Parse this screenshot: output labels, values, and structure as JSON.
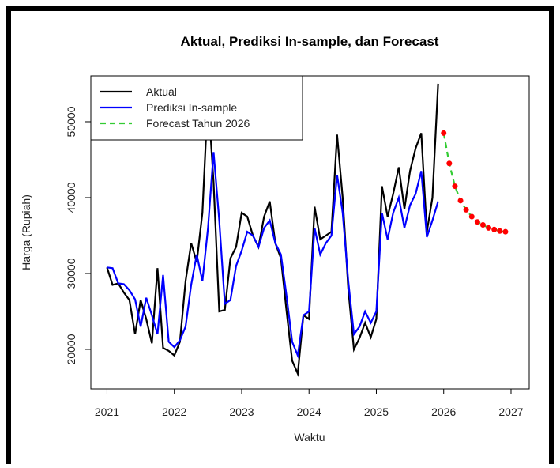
{
  "chart_data": {
    "type": "line",
    "title": "Aktual, Prediksi In-sample, dan Forecast",
    "x_label": "Waktu",
    "y_label": "Harga (Rupiah)",
    "xlim": [
      2020.76,
      2027.27
    ],
    "ylim": [
      14790,
      56040
    ],
    "xticks": [
      2021,
      2022,
      2023,
      2024,
      2025,
      2026,
      2027
    ],
    "yticks": [
      20000,
      30000,
      40000,
      50000
    ],
    "legend": "top-left",
    "series": [
      {
        "name": "Aktual",
        "color": "#000000",
        "dash": false,
        "x": [
          2021.0,
          2021.083,
          2021.167,
          2021.25,
          2021.333,
          2021.417,
          2021.5,
          2021.583,
          2021.667,
          2021.75,
          2021.833,
          2021.917,
          2022.0,
          2022.083,
          2022.167,
          2022.25,
          2022.333,
          2022.417,
          2022.5,
          2022.583,
          2022.667,
          2022.75,
          2022.833,
          2022.917,
          2023.0,
          2023.083,
          2023.167,
          2023.25,
          2023.333,
          2023.417,
          2023.5,
          2023.583,
          2023.667,
          2023.75,
          2023.833,
          2023.917,
          2024.0,
          2024.083,
          2024.167,
          2024.25,
          2024.333,
          2024.417,
          2024.5,
          2024.583,
          2024.667,
          2024.75,
          2024.833,
          2024.917,
          2025.0,
          2025.083,
          2025.167,
          2025.25,
          2025.333,
          2025.417,
          2025.5,
          2025.583,
          2025.667,
          2025.75,
          2025.833,
          2025.917
        ],
        "values": [
          30800,
          28500,
          28700,
          27500,
          26500,
          22000,
          26500,
          24000,
          20800,
          30700,
          20200,
          19800,
          19200,
          21000,
          29000,
          34000,
          31500,
          38000,
          53500,
          42000,
          25000,
          25200,
          32000,
          33500,
          38000,
          37500,
          35000,
          33500,
          37500,
          39500,
          34000,
          32000,
          25000,
          18500,
          16800,
          24500,
          24000,
          38800,
          34500,
          35000,
          35500,
          48300,
          40000,
          28000,
          20000,
          21500,
          23500,
          21600,
          24000,
          41500,
          37500,
          40500,
          44000,
          38500,
          43500,
          46500,
          48500,
          35500,
          40000,
          55000
        ]
      },
      {
        "name": "Prediksi In-sample",
        "color": "#0000ff",
        "dash": false,
        "x": [
          2021.0,
          2021.083,
          2021.167,
          2021.25,
          2021.333,
          2021.417,
          2021.5,
          2021.583,
          2021.667,
          2021.75,
          2021.833,
          2021.917,
          2022.0,
          2022.083,
          2022.167,
          2022.25,
          2022.333,
          2022.417,
          2022.5,
          2022.583,
          2022.667,
          2022.75,
          2022.833,
          2022.917,
          2023.0,
          2023.083,
          2023.167,
          2023.25,
          2023.333,
          2023.417,
          2023.5,
          2023.583,
          2023.667,
          2023.75,
          2023.833,
          2023.917,
          2024.0,
          2024.083,
          2024.167,
          2024.25,
          2024.333,
          2024.417,
          2024.5,
          2024.583,
          2024.667,
          2024.75,
          2024.833,
          2024.917,
          2025.0,
          2025.083,
          2025.167,
          2025.25,
          2025.333,
          2025.417,
          2025.5,
          2025.583,
          2025.667,
          2025.75,
          2025.833,
          2025.917
        ],
        "values": [
          30800,
          30700,
          28700,
          28600,
          27800,
          26600,
          23000,
          26800,
          24500,
          22000,
          29800,
          21000,
          20300,
          21200,
          23000,
          28500,
          32500,
          29000,
          36000,
          46000,
          37000,
          26000,
          26500,
          31000,
          33000,
          35500,
          35000,
          33500,
          36000,
          37000,
          34000,
          32500,
          27000,
          21000,
          19200,
          24500,
          25000,
          36000,
          32500,
          34000,
          35000,
          43000,
          38000,
          29000,
          22000,
          23000,
          25000,
          23500,
          25000,
          38000,
          34500,
          38000,
          40000,
          36000,
          39000,
          40500,
          43500,
          34800,
          37000,
          39500
        ]
      },
      {
        "name": "Forecast Tahun 2026",
        "color": "#33cc33",
        "dash": true,
        "marker_color": "#ff0000",
        "x": [
          2026.0,
          2026.083,
          2026.167,
          2026.25,
          2026.333,
          2026.417,
          2026.5,
          2026.583,
          2026.667,
          2026.75,
          2026.833,
          2026.917
        ],
        "values": [
          48500,
          44500,
          41500,
          39600,
          38400,
          37500,
          36800,
          36400,
          36000,
          35800,
          35600,
          35500
        ]
      }
    ]
  }
}
